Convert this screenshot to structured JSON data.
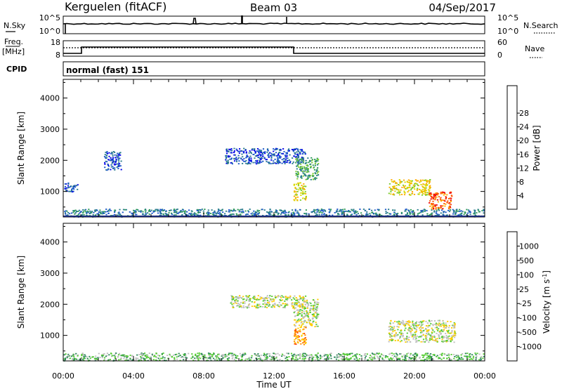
{
  "header": {
    "station": "Kerguelen (fitACF)",
    "beam": "Beam 03",
    "date": "04/Sep/2017"
  },
  "sky_panel": {
    "left_label": "N.Sky",
    "right_label": "N.Search",
    "ticks_left": [
      "10^5",
      "10^0"
    ],
    "ticks_right": [
      "10^5",
      "10^0"
    ]
  },
  "freq_panel": {
    "left_label": "Freq.",
    "left_unit": "[MHz]",
    "right_label": "Nave",
    "ticks_left": [
      "18",
      "8"
    ],
    "ticks_right": [
      "60",
      "0"
    ]
  },
  "cpid": {
    "label": "CPID",
    "value": "normal (fast) 151"
  },
  "time_axis": {
    "label": "Time UT",
    "ticks": [
      "00:00",
      "04:00",
      "08:00",
      "12:00",
      "16:00",
      "20:00",
      "00:00"
    ]
  },
  "chart_data": [
    {
      "type": "heatmap",
      "title": "",
      "ylabel": "Slant Range [km]",
      "xlabel": "",
      "xlim": [
        0,
        24
      ],
      "ylim": [
        180,
        4600
      ],
      "yticks": [
        1000,
        2000,
        3000,
        4000
      ],
      "colorbar": {
        "label": "Power [dB]",
        "ticks": [
          "4",
          "8",
          "12",
          "16",
          "20",
          "24",
          "28"
        ],
        "colors": [
          "#0000e6",
          "#1a56c8",
          "#2a7c8e",
          "#2e9a5a",
          "#7ccc33",
          "#d8d800",
          "#ffaa00",
          "#ff5500",
          "#ee0000"
        ]
      },
      "regions": [
        {
          "time": [
            0.05,
            0.8
          ],
          "range": [
            1000,
            1300
          ],
          "level": 1
        },
        {
          "time": [
            2.3,
            3.3
          ],
          "range": [
            1700,
            2300
          ],
          "level": 1
        },
        {
          "time": [
            9.2,
            13.8
          ],
          "range": [
            1900,
            2400
          ],
          "level": 1
        },
        {
          "time": [
            13.1,
            13.8
          ],
          "range": [
            700,
            1300
          ],
          "level": 5
        },
        {
          "time": [
            13.2,
            14.5
          ],
          "range": [
            1400,
            2100
          ],
          "level": 3
        },
        {
          "time": [
            18.5,
            20.9
          ],
          "range": [
            900,
            1400
          ],
          "level": 5
        },
        {
          "time": [
            20.8,
            22.1
          ],
          "range": [
            450,
            1000
          ],
          "level": 7
        },
        {
          "time": [
            0,
            24
          ],
          "range": [
            200,
            450
          ],
          "level": 2
        }
      ]
    },
    {
      "type": "heatmap",
      "title": "",
      "ylabel": "Slant Range [km]",
      "xlabel": "Time UT",
      "xlim": [
        0,
        24
      ],
      "ylim": [
        180,
        4600
      ],
      "yticks": [
        1000,
        2000,
        3000,
        4000
      ],
      "colorbar": {
        "label": "Velocity [m s^-1]",
        "ticks": [
          "1000",
          "500",
          "100",
          "25",
          "-25",
          "-100",
          "-500",
          "-1000"
        ],
        "colors": [
          "#1a3ae6",
          "#2a56b8",
          "#2e8a5a",
          "#55cc33",
          "#bfbfbf",
          "#ffcc00",
          "#ff8800",
          "#ff4400",
          "#ee0000"
        ]
      },
      "regions": [
        {
          "time": [
            9.5,
            13.8
          ],
          "range": [
            1900,
            2300
          ],
          "level": 4
        },
        {
          "time": [
            13.1,
            13.8
          ],
          "range": [
            700,
            1300
          ],
          "level": 6
        },
        {
          "time": [
            13.1,
            14.5
          ],
          "range": [
            1300,
            2200
          ],
          "level": 4
        },
        {
          "time": [
            18.5,
            22.3
          ],
          "range": [
            800,
            1500
          ],
          "level": 4
        },
        {
          "time": [
            0,
            24
          ],
          "range": [
            200,
            450
          ],
          "level": 3
        }
      ]
    }
  ]
}
